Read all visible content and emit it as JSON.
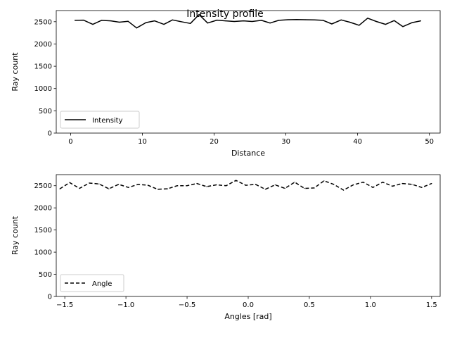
{
  "figure": {
    "title": "Intensity profile"
  },
  "chart_data": [
    {
      "type": "line",
      "xlabel": "Distance",
      "ylabel": "Ray count",
      "xlim": [
        -2,
        51.5
      ],
      "ylim": [
        0,
        2750
      ],
      "xticks": [
        0,
        10,
        20,
        30,
        40,
        50
      ],
      "xtick_labels": [
        "0",
        "10",
        "20",
        "30",
        "40",
        "50"
      ],
      "yticks": [
        0,
        500,
        1000,
        1500,
        2000,
        2500
      ],
      "ytick_labels": [
        "0",
        "500",
        "1000",
        "1500",
        "2000",
        "2500"
      ],
      "legend_position": "lower-left",
      "series": [
        {
          "name": "Intensity",
          "color": "#000000",
          "linestyle": "solid",
          "x": [
            0.6,
            1.8,
            3.1,
            4.3,
            5.6,
            6.8,
            8.0,
            9.2,
            10.5,
            11.7,
            13.0,
            14.2,
            15.4,
            16.7,
            17.9,
            19.1,
            20.4,
            21.6,
            22.8,
            24.1,
            25.3,
            26.6,
            27.8,
            29.0,
            30.3,
            31.5,
            32.7,
            34.0,
            35.2,
            36.4,
            37.7,
            38.9,
            40.2,
            41.4,
            42.6,
            43.9,
            45.1,
            46.3,
            47.6,
            48.8
          ],
          "y": [
            2530,
            2535,
            2440,
            2530,
            2520,
            2490,
            2510,
            2360,
            2480,
            2520,
            2440,
            2540,
            2500,
            2460,
            2660,
            2470,
            2535,
            2520,
            2505,
            2520,
            2505,
            2530,
            2470,
            2530,
            2545,
            2550,
            2545,
            2540,
            2530,
            2450,
            2540,
            2490,
            2420,
            2580,
            2505,
            2440,
            2525,
            2390,
            2480,
            2520
          ]
        }
      ]
    },
    {
      "type": "line",
      "xlabel": "Angles [rad]",
      "ylabel": "Ray count",
      "xlim": [
        -1.57,
        1.57
      ],
      "ylim": [
        0,
        2750
      ],
      "xticks": [
        -1.5,
        -1.0,
        -0.5,
        0.0,
        0.5,
        1.0,
        1.5
      ],
      "xtick_labels": [
        "−1.5",
        "−1.0",
        "−0.5",
        "0.0",
        "0.5",
        "1.0",
        "1.5"
      ],
      "yticks": [
        0,
        500,
        1000,
        1500,
        2000,
        2500
      ],
      "ytick_labels": [
        "0",
        "500",
        "1000",
        "1500",
        "2000",
        "2500"
      ],
      "legend_position": "lower-left",
      "series": [
        {
          "name": "Angle",
          "color": "#000000",
          "linestyle": "dashed",
          "x": [
            -1.54,
            -1.46,
            -1.38,
            -1.3,
            -1.22,
            -1.14,
            -1.06,
            -0.98,
            -0.9,
            -0.82,
            -0.74,
            -0.66,
            -0.58,
            -0.5,
            -0.42,
            -0.34,
            -0.26,
            -0.18,
            -0.1,
            -0.02,
            0.06,
            0.14,
            0.22,
            0.3,
            0.38,
            0.46,
            0.54,
            0.62,
            0.7,
            0.78,
            0.86,
            0.94,
            1.02,
            1.1,
            1.18,
            1.26,
            1.34,
            1.42,
            1.5
          ],
          "y": [
            2430,
            2570,
            2440,
            2560,
            2540,
            2430,
            2530,
            2460,
            2530,
            2510,
            2420,
            2430,
            2500,
            2500,
            2550,
            2480,
            2520,
            2500,
            2620,
            2510,
            2530,
            2420,
            2520,
            2440,
            2580,
            2440,
            2450,
            2610,
            2530,
            2400,
            2520,
            2580,
            2460,
            2580,
            2490,
            2550,
            2530,
            2460,
            2550
          ]
        }
      ]
    }
  ]
}
